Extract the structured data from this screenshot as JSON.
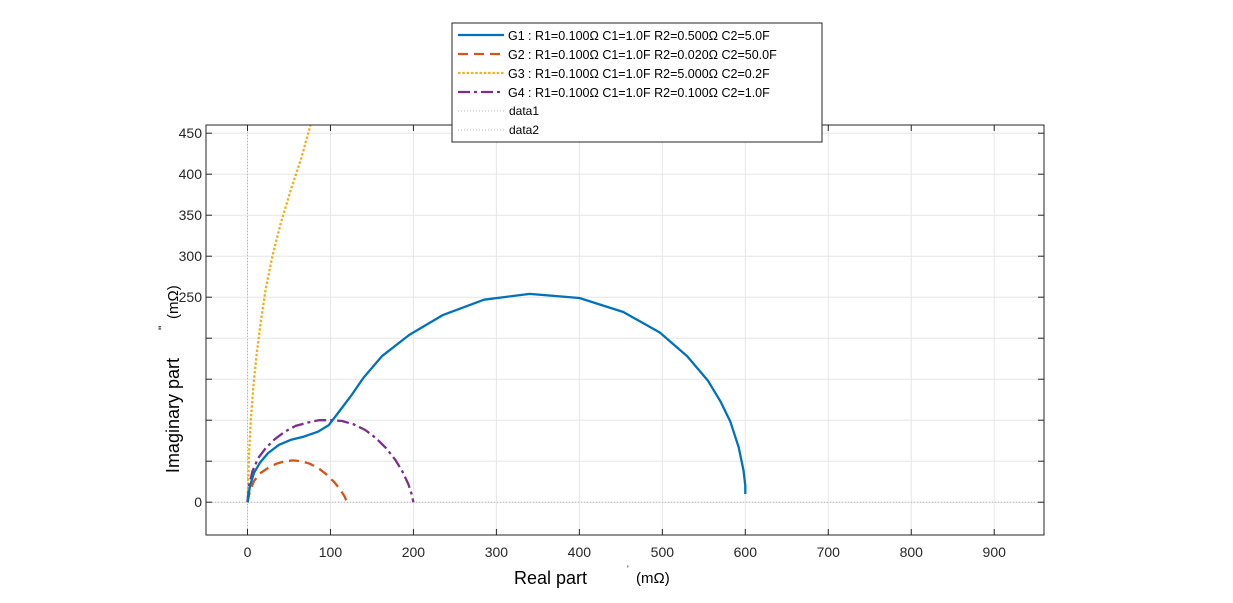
{
  "chart_data": {
    "type": "line",
    "title": "",
    "xlabel": "Real part",
    "xlabel_unit": "(mΩ)",
    "xlabel_mark": "'",
    "ylabel": "Imaginary part",
    "ylabel_unit": "(mΩ)",
    "ylabel_mark": "\"",
    "xlim": [
      -50,
      960
    ],
    "ylim": [
      -40,
      460
    ],
    "xticks": [
      0,
      100,
      200,
      300,
      400,
      500,
      600,
      700,
      800,
      900
    ],
    "yticks_labeled": [
      0,
      250,
      300,
      350,
      400,
      450
    ],
    "ygrid": [
      0,
      50,
      100,
      150,
      200,
      250,
      300,
      350,
      400,
      450
    ],
    "grid": true,
    "legend_position": "top-center",
    "series": [
      {
        "name": "G1",
        "legend_text": ": R1=0.100Ω C1=1.0F R2=0.500Ω C2=5.0F",
        "color": "#0072BD",
        "dash": "solid",
        "x": [
          0,
          3,
          8,
          15,
          25,
          38,
          52,
          68,
          85,
          98,
          110,
          125,
          140,
          162,
          195,
          235,
          285,
          340,
          400,
          453,
          497,
          530,
          555,
          570,
          582,
          592,
          598,
          600,
          600
        ],
        "y": [
          0,
          20,
          36,
          48,
          60,
          70,
          76,
          80,
          86,
          94,
          110,
          130,
          152,
          178,
          204,
          228,
          247,
          254,
          249,
          232,
          207,
          178,
          148,
          123,
          98,
          67,
          38,
          20,
          10
        ]
      },
      {
        "name": "G2",
        "legend_text": ": R1=0.100Ω C1=1.0F R2=0.020Ω C2=50.0F",
        "color": "#D95319",
        "dash": "10 6",
        "x": [
          0,
          3,
          8,
          15,
          25,
          35,
          45,
          55,
          65,
          75,
          85,
          95,
          105,
          112,
          117,
          120
        ],
        "y": [
          0,
          14,
          26,
          35,
          42,
          47,
          50,
          51,
          50,
          47,
          42,
          34,
          24,
          15,
          7,
          0
        ]
      },
      {
        "name": "G3",
        "legend_text": ": R1=0.100Ω C1=1.0F R2=5.000Ω C2=0.2F",
        "color": "#EDB120",
        "dash": "2.5 1.8",
        "x": [
          0,
          1,
          2,
          4,
          7,
          11,
          16,
          22,
          30,
          40,
          52,
          65,
          76
        ],
        "y": [
          0,
          30,
          60,
          100,
          140,
          180,
          220,
          260,
          300,
          340,
          380,
          420,
          460
        ]
      },
      {
        "name": "G4",
        "legend_text": ": R1=0.100Ω C1=1.0F R2=0.100Ω C2=1.0F",
        "color": "#7E2F8E",
        "dash": "12 4 3 4",
        "x": [
          0,
          2,
          6,
          13,
          22,
          33,
          45,
          58,
          72,
          86,
          100,
          114,
          128,
          142,
          155,
          167,
          178,
          187,
          194,
          198,
          200
        ],
        "y": [
          0,
          20,
          38,
          54,
          66,
          77,
          86,
          93,
          97,
          100,
          100,
          99,
          95,
          88,
          78,
          66,
          52,
          37,
          22,
          9,
          0
        ]
      },
      {
        "name": "data1",
        "legend_text": "",
        "color": "#b4b4b4",
        "dash": "1 2",
        "x": [
          -50,
          960
        ],
        "y": [
          0,
          0
        ]
      },
      {
        "name": "data2",
        "legend_text": "",
        "color": "#b4b4b4",
        "dash": "1 2",
        "x": [
          0,
          0
        ],
        "y": [
          -40,
          460
        ]
      }
    ]
  }
}
